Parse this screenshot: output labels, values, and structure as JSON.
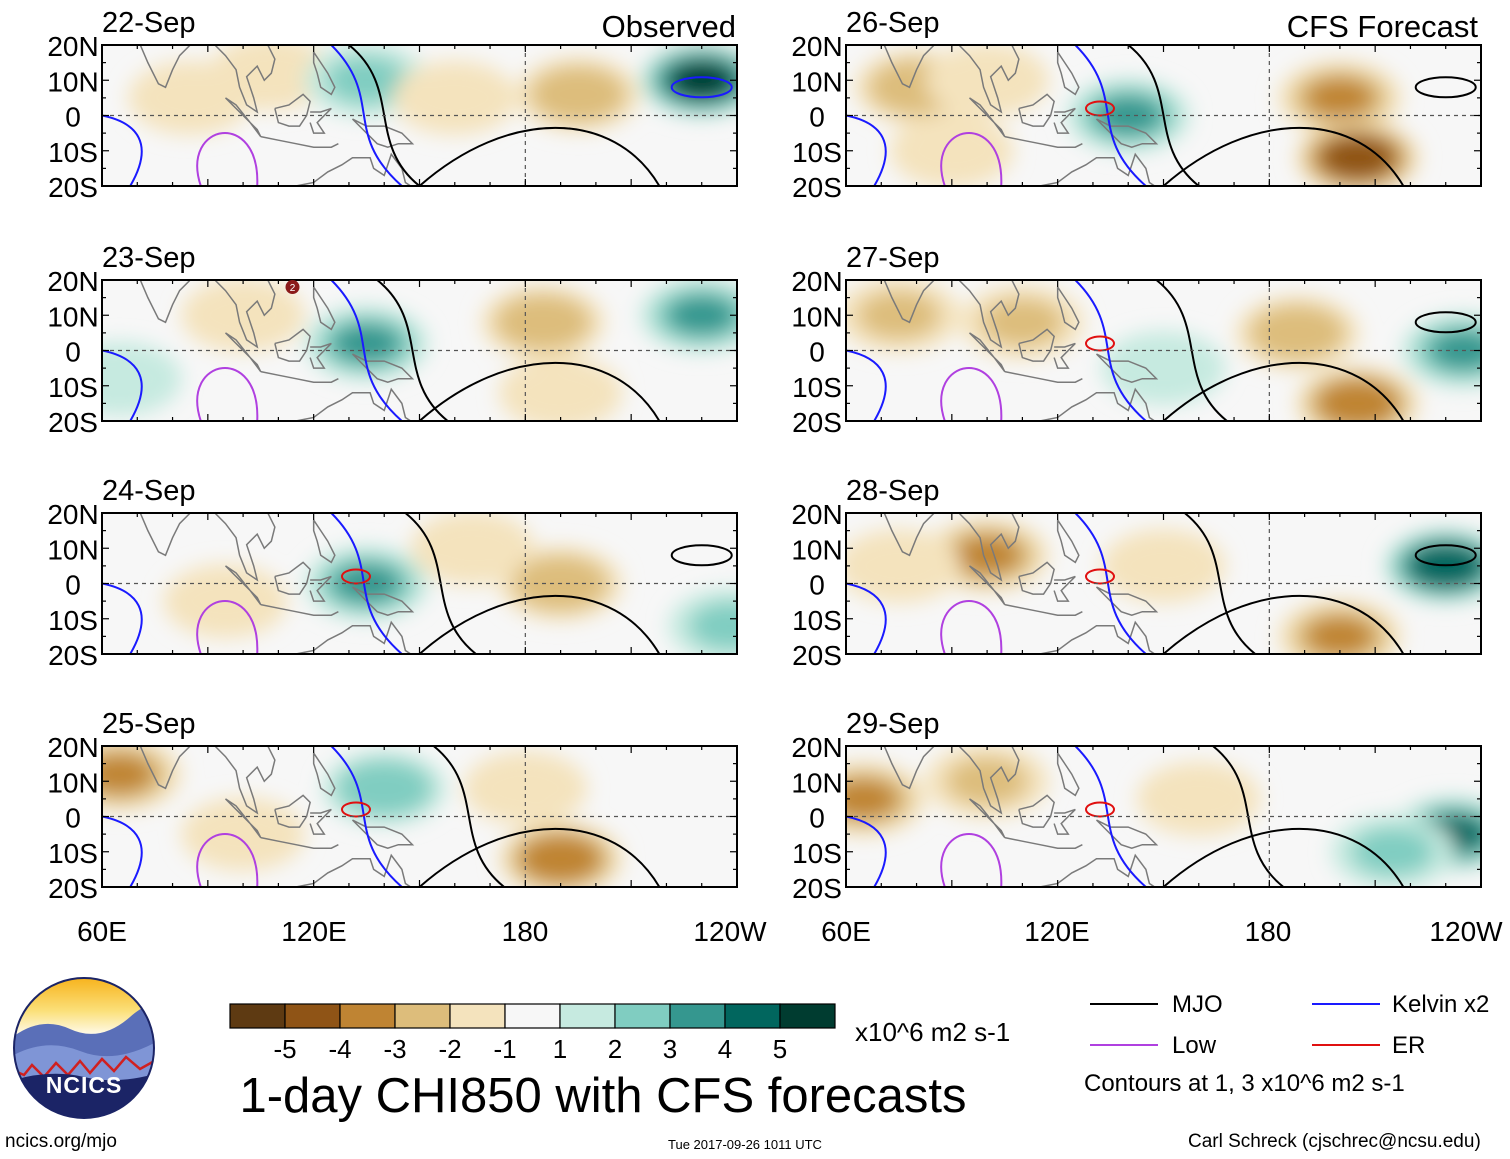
{
  "chart_data": {
    "type": "heatmap",
    "title": "1-day CHI850 with CFS forecasts",
    "colorbar_units": "x10^6 m2 s-1",
    "colorbar_ticks": [
      "-5",
      "-4",
      "-3",
      "-2",
      "-1",
      "1",
      "2",
      "3",
      "4",
      "5"
    ],
    "colorbar_colors": [
      "#5e3a12",
      "#8f5416",
      "#bf8433",
      "#ddbd7b",
      "#f4e3bd",
      "#f7f7f7",
      "#c6eae0",
      "#80cdc1",
      "#35978f",
      "#01665e",
      "#003c30"
    ],
    "x_ticks": [
      "60E",
      "120E",
      "180",
      "120W"
    ],
    "y_ticks": [
      "20N",
      "10N",
      "0",
      "10S",
      "20S"
    ],
    "lon_range": [
      60,
      240
    ],
    "lat_range": [
      -20,
      20
    ],
    "column_titles": [
      "Observed",
      "CFS Forecast"
    ],
    "panels": [
      {
        "date": "22-Sep",
        "source": "observed",
        "anomalies": [
          {
            "lon": 108,
            "lat": 12,
            "value": -1.5
          },
          {
            "lon": 135,
            "lat": 10,
            "value": 2.0
          },
          {
            "lon": 160,
            "lat": 5,
            "value": -1.5
          },
          {
            "lon": 195,
            "lat": 6,
            "value": -2.5
          },
          {
            "lon": 230,
            "lat": 10,
            "value": 5.0
          },
          {
            "lon": 85,
            "lat": 5,
            "value": -1.0
          }
        ]
      },
      {
        "date": "23-Sep",
        "source": "observed",
        "anomalies": [
          {
            "lon": 100,
            "lat": 10,
            "value": -1.5
          },
          {
            "lon": 135,
            "lat": 2,
            "value": 3.0
          },
          {
            "lon": 185,
            "lat": 8,
            "value": -2.2
          },
          {
            "lon": 190,
            "lat": -12,
            "value": -1.5
          },
          {
            "lon": 230,
            "lat": 10,
            "value": 3.0
          },
          {
            "lon": 65,
            "lat": -8,
            "value": 1.5
          }
        ]
      },
      {
        "date": "24-Sep",
        "source": "observed",
        "anomalies": [
          {
            "lon": 95,
            "lat": -5,
            "value": -1.5
          },
          {
            "lon": 135,
            "lat": 0,
            "value": 3.0
          },
          {
            "lon": 165,
            "lat": 10,
            "value": -1.5
          },
          {
            "lon": 190,
            "lat": 0,
            "value": -2.5
          },
          {
            "lon": 238,
            "lat": -12,
            "value": 2.0
          }
        ]
      },
      {
        "date": "25-Sep",
        "source": "observed",
        "anomalies": [
          {
            "lon": 65,
            "lat": 12,
            "value": -3.0
          },
          {
            "lon": 100,
            "lat": -5,
            "value": -1.5
          },
          {
            "lon": 140,
            "lat": 8,
            "value": 2.5
          },
          {
            "lon": 190,
            "lat": -12,
            "value": -3.8
          },
          {
            "lon": 180,
            "lat": 8,
            "value": -1.5
          }
        ]
      },
      {
        "date": "26-Sep",
        "source": "forecast",
        "anomalies": [
          {
            "lon": 80,
            "lat": 8,
            "value": -2.5
          },
          {
            "lon": 100,
            "lat": 10,
            "value": -1.5
          },
          {
            "lon": 140,
            "lat": 0,
            "value": 3.0
          },
          {
            "lon": 200,
            "lat": 5,
            "value": -3.0
          },
          {
            "lon": 205,
            "lat": -12,
            "value": -4.5
          },
          {
            "lon": 90,
            "lat": -10,
            "value": -1.5
          }
        ]
      },
      {
        "date": "27-Sep",
        "source": "forecast",
        "anomalies": [
          {
            "lon": 75,
            "lat": 10,
            "value": -2.0
          },
          {
            "lon": 110,
            "lat": 8,
            "value": -2.0
          },
          {
            "lon": 150,
            "lat": -5,
            "value": 1.5
          },
          {
            "lon": 188,
            "lat": 5,
            "value": -2.5
          },
          {
            "lon": 205,
            "lat": -15,
            "value": -3.5
          },
          {
            "lon": 235,
            "lat": 0,
            "value": 3.0
          }
        ]
      },
      {
        "date": "28-Sep",
        "source": "forecast",
        "anomalies": [
          {
            "lon": 100,
            "lat": 8,
            "value": -3.0
          },
          {
            "lon": 75,
            "lat": 5,
            "value": -1.5
          },
          {
            "lon": 200,
            "lat": -15,
            "value": -3.0
          },
          {
            "lon": 230,
            "lat": 5,
            "value": 4.5
          },
          {
            "lon": 150,
            "lat": 5,
            "value": -1.0
          }
        ]
      },
      {
        "date": "29-Sep",
        "source": "forecast",
        "anomalies": [
          {
            "lon": 65,
            "lat": 5,
            "value": -3.0
          },
          {
            "lon": 100,
            "lat": 10,
            "value": -2.0
          },
          {
            "lon": 160,
            "lat": 5,
            "value": -1.0
          },
          {
            "lon": 232,
            "lat": -5,
            "value": 4.0
          },
          {
            "lon": 215,
            "lat": -10,
            "value": 2.0
          }
        ]
      }
    ],
    "contour_legend": [
      {
        "name": "MJO",
        "color": "#000000"
      },
      {
        "name": "Kelvin x2",
        "color": "#1a1aff"
      },
      {
        "name": "Low",
        "color": "#b040e0"
      },
      {
        "name": "ER",
        "color": "#e01010"
      }
    ],
    "contour_note": "Contours at 1, 3 x10^6 m2 s-1"
  },
  "footer": {
    "logo_text": "NCICS",
    "url": "ncics.org/mjo",
    "timestamp": "Tue 2017-09-26 1011 UTC",
    "credit": "Carl Schreck (cjschrec@ncsu.edu)"
  },
  "marker_label": "2"
}
